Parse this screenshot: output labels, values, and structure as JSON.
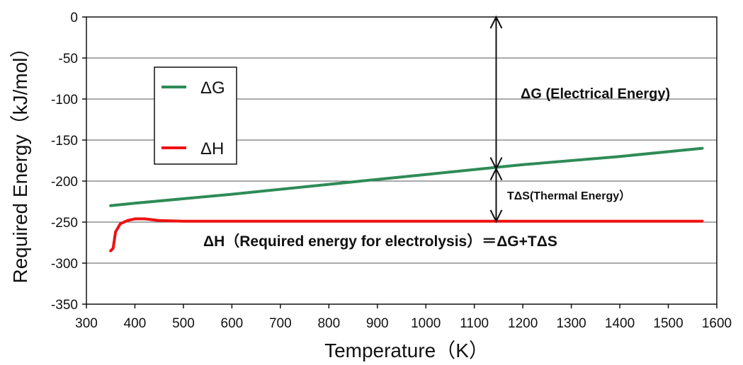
{
  "chart_data": {
    "type": "line",
    "title": "",
    "xlabel": "Temperature（K）",
    "ylabel": "Required Energy（kJ/mol）",
    "xlim": [
      300,
      1600
    ],
    "ylim": [
      -350,
      0
    ],
    "x_ticks": [
      "300",
      "400",
      "500",
      "600",
      "700",
      "800",
      "900",
      "1000",
      "1100",
      "1200",
      "1300",
      "1400",
      "1500",
      "1600"
    ],
    "y_ticks": [
      "0",
      "-50",
      "-100",
      "-150",
      "-200",
      "-250",
      "-300",
      "-350"
    ],
    "grid": "horizontal",
    "legend_position": "top-left",
    "series": [
      {
        "name": "ΔG",
        "color": "#2e8b57",
        "points": [
          [
            350,
            -230
          ],
          [
            400,
            -227
          ],
          [
            600,
            -216
          ],
          [
            800,
            -204
          ],
          [
            1000,
            -192
          ],
          [
            1200,
            -180
          ],
          [
            1400,
            -170
          ],
          [
            1570,
            -160
          ]
        ]
      },
      {
        "name": "ΔH",
        "color": "#ee1111",
        "points": [
          [
            350,
            -285
          ],
          [
            355,
            -282
          ],
          [
            360,
            -262
          ],
          [
            370,
            -252
          ],
          [
            385,
            -248
          ],
          [
            400,
            -246
          ],
          [
            420,
            -246
          ],
          [
            450,
            -248
          ],
          [
            500,
            -249
          ],
          [
            700,
            -249
          ],
          [
            1000,
            -249
          ],
          [
            1300,
            -249
          ],
          [
            1570,
            -249
          ]
        ]
      }
    ],
    "annotations": {
      "dg_label": "ΔG (Electrical Energy)",
      "tds_label": "TΔS(Thermal Energy）",
      "dh_label": "ΔH（Required energy for electrolysis）＝ΔG+TΔS",
      "arrow_x": 1145,
      "dg_arrow_range": [
        0,
        -185
      ],
      "tds_arrow_range": [
        -185,
        -249
      ]
    }
  }
}
